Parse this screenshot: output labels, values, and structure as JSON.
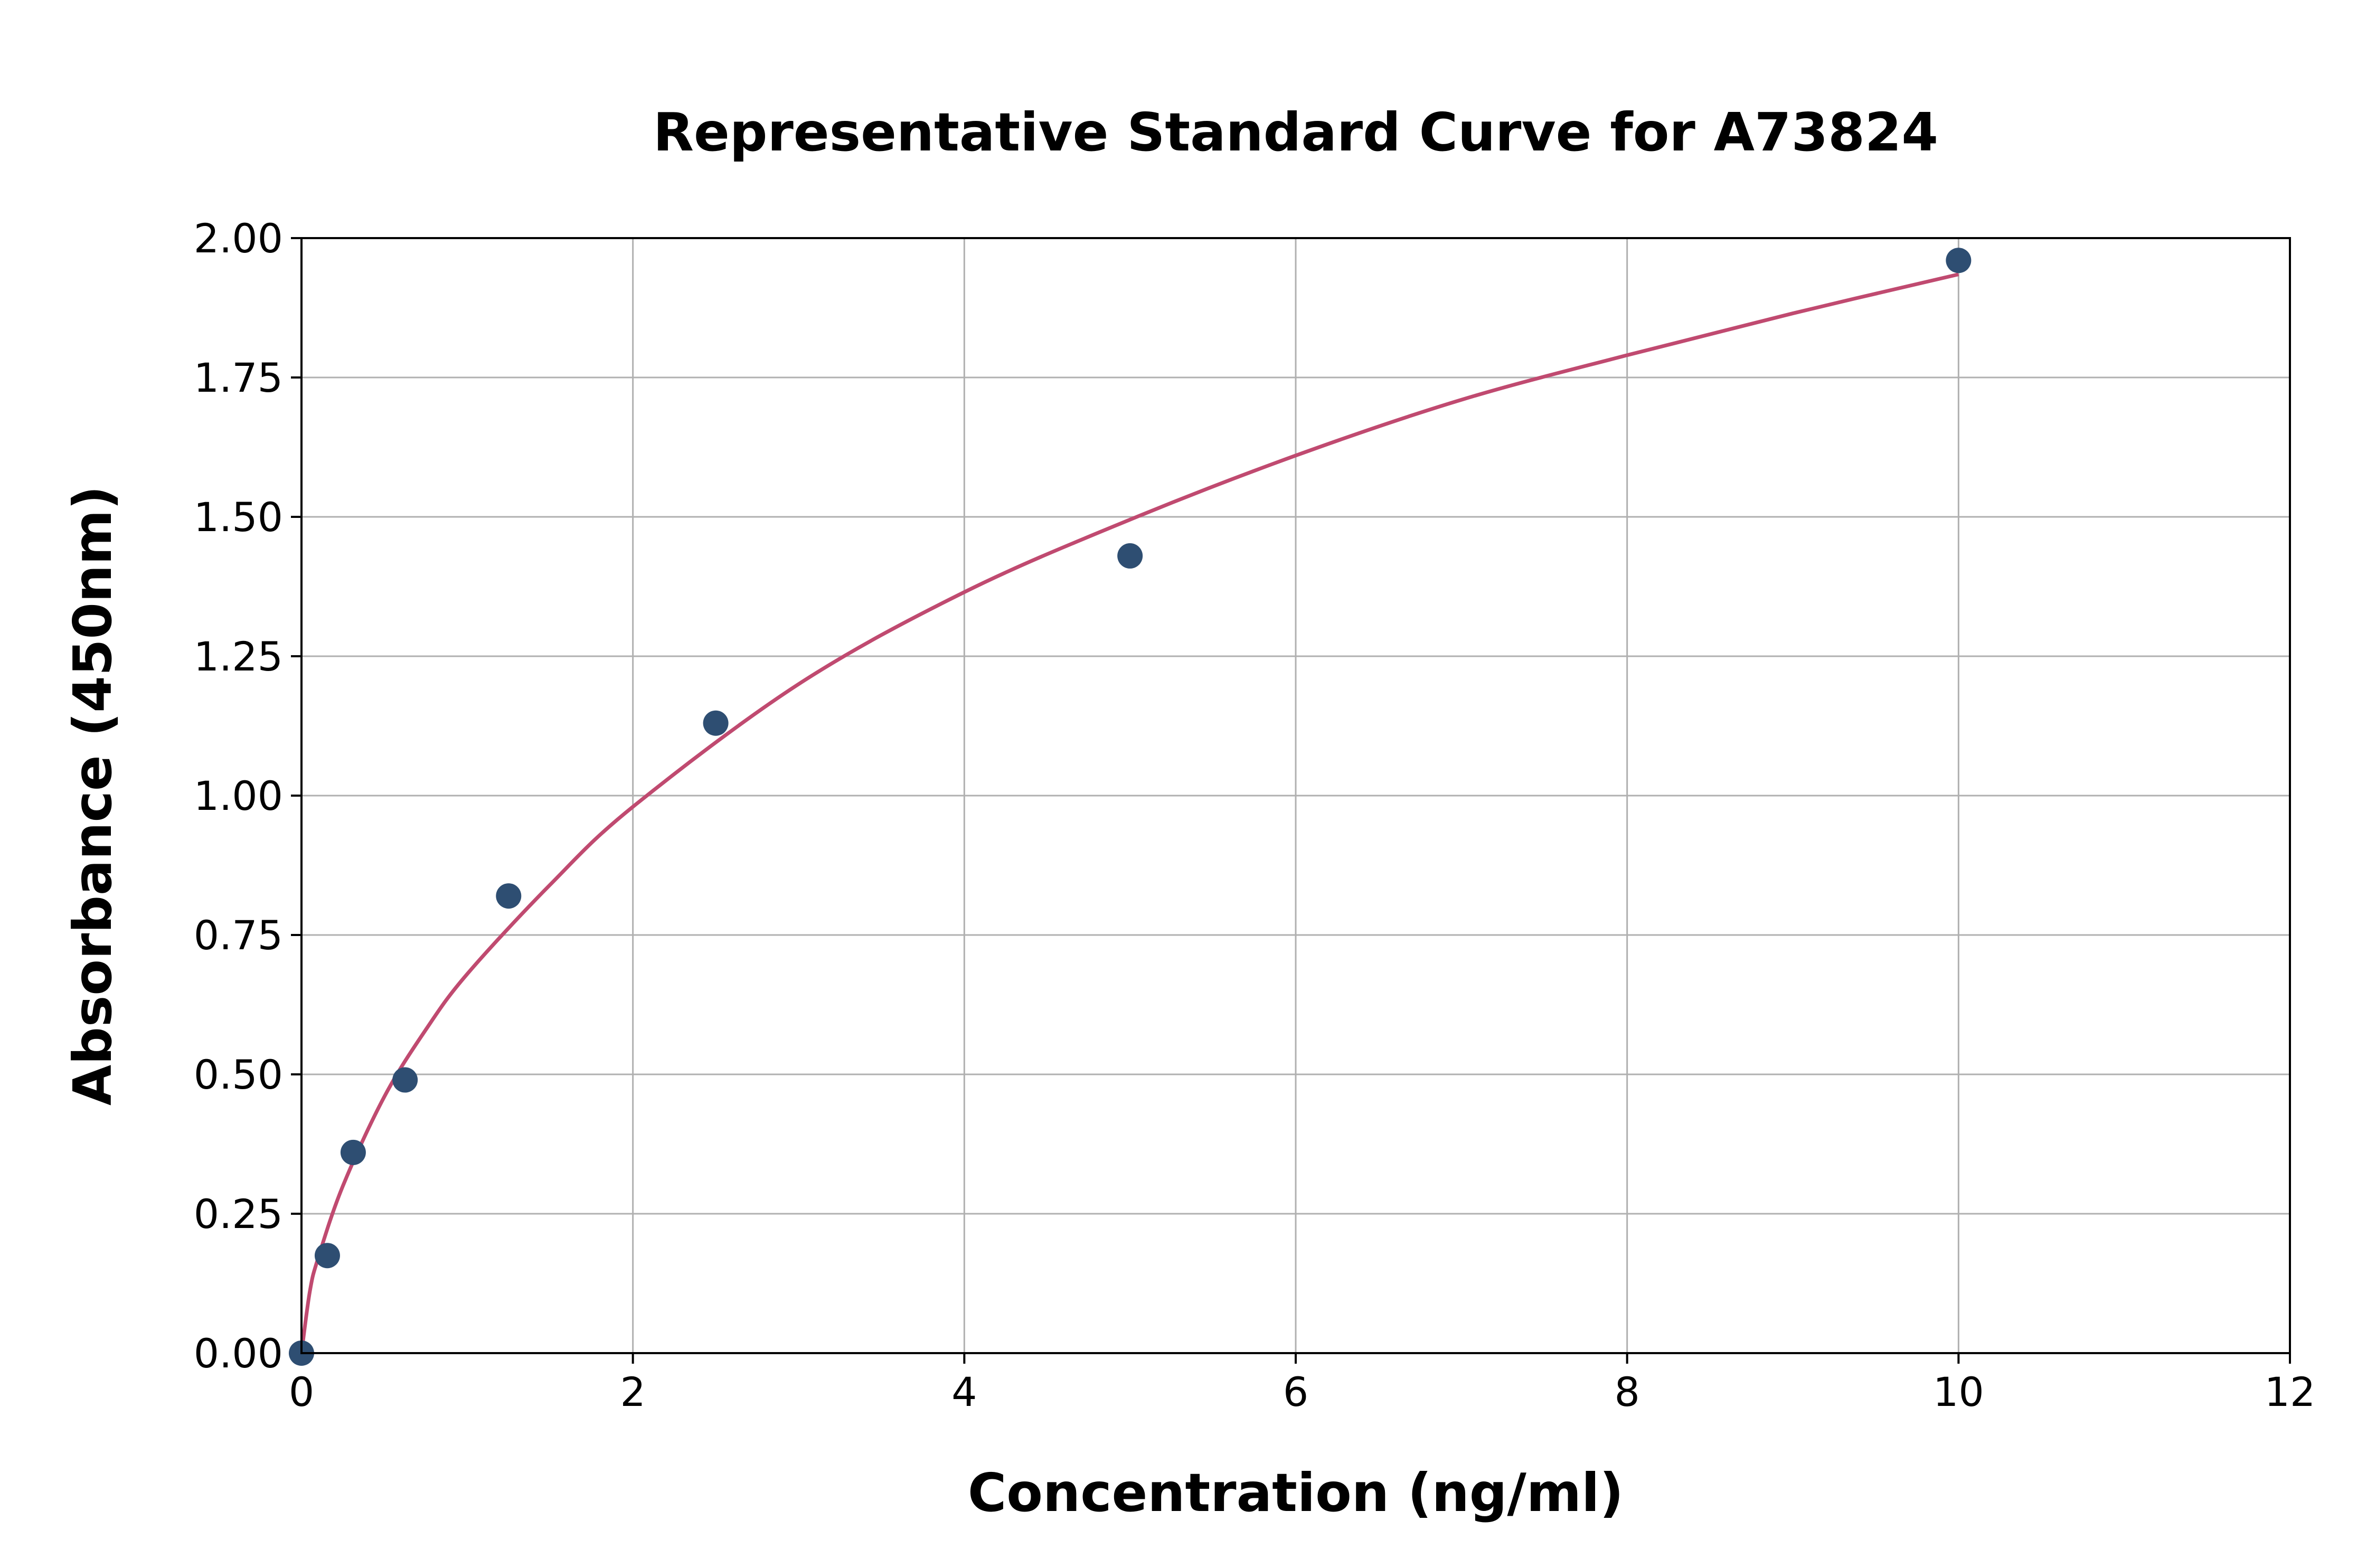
{
  "chart_data": {
    "type": "scatter",
    "title": "Representative Standard Curve for A73824",
    "xlabel": "Concentration (ng/ml)",
    "ylabel": "Absorbance (450nm)",
    "xlim": [
      0,
      12
    ],
    "ylim": [
      0,
      2.0
    ],
    "xticks": [
      "0",
      "2",
      "4",
      "6",
      "8",
      "10",
      "12"
    ],
    "yticks": [
      "0.00",
      "0.25",
      "0.50",
      "0.75",
      "1.00",
      "1.25",
      "1.50",
      "1.75",
      "2.00"
    ],
    "grid": true,
    "points": {
      "x": [
        0,
        0.156,
        0.312,
        0.625,
        1.25,
        2.5,
        5,
        10
      ],
      "y": [
        0.0,
        0.175,
        0.36,
        0.49,
        0.82,
        1.13,
        1.43,
        1.96
      ],
      "color": "#2e4e72"
    },
    "fit_curve": {
      "x": [
        0,
        0.05,
        0.1,
        0.25,
        0.5,
        0.75,
        1,
        1.5,
        2,
        3,
        4,
        5,
        6,
        7,
        8,
        9,
        10
      ],
      "y": [
        0,
        0.11,
        0.17,
        0.3,
        0.46,
        0.58,
        0.68,
        0.84,
        0.98,
        1.2,
        1.365,
        1.495,
        1.61,
        1.71,
        1.79,
        1.865,
        1.935
      ],
      "color": "#c04a70"
    }
  }
}
